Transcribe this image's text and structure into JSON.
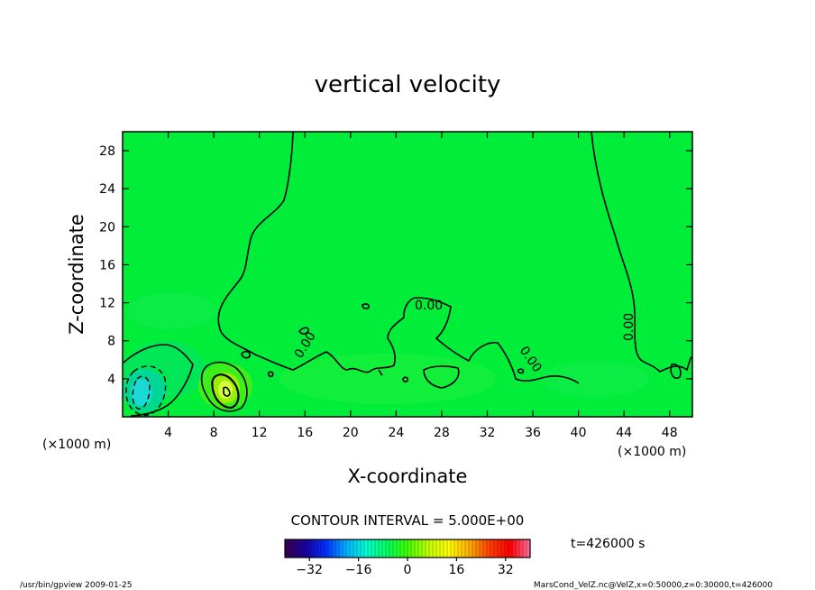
{
  "chart_data": {
    "type": "contour",
    "title": "vertical velocity",
    "xlabel": "X-coordinate",
    "ylabel": "Z-coordinate",
    "x_unit": "(×1000 m)",
    "x_unit_right": "(×1000 m)",
    "xlim": [
      0,
      50
    ],
    "ylim": [
      0,
      30
    ],
    "x_ticks": [
      4,
      8,
      12,
      16,
      20,
      24,
      28,
      32,
      36,
      40,
      44,
      48
    ],
    "y_ticks": [
      4,
      8,
      12,
      16,
      20,
      24,
      28
    ],
    "contour_interval_label": "CONTOUR INTERVAL = 5.000E+00",
    "contour_labels": [
      "0.00",
      "0.00",
      "0.00",
      "0.00"
    ],
    "colorbar": {
      "min": -40,
      "max": 40,
      "ticks": [
        -32,
        -16,
        0,
        16,
        32
      ],
      "tick_labels": [
        "−32",
        "−16",
        "0",
        "16",
        "32"
      ],
      "colors": [
        "#3a004f",
        "#1a00a0",
        "#0030ff",
        "#00b0ff",
        "#00ffd0",
        "#00ff60",
        "#40ff00",
        "#c0ff00",
        "#ffff00",
        "#ffb000",
        "#ff4000",
        "#ff0000",
        "#ff70a0"
      ]
    },
    "background_color": "#00ee3a",
    "features": [
      {
        "name": "downdraft",
        "x": 2,
        "z": 2.5,
        "value_range": [
          -15,
          -5
        ]
      },
      {
        "name": "updraft",
        "x": 9.3,
        "z": 3.0,
        "value_range": [
          5,
          15
        ]
      }
    ],
    "time_label": "t=426000 s"
  },
  "footer": {
    "left": "/usr/bin/gpview  2009-01-25",
    "right": "MarsCond_VelZ.nc@VelZ,x=0:50000,z=0:30000,t=426000"
  }
}
